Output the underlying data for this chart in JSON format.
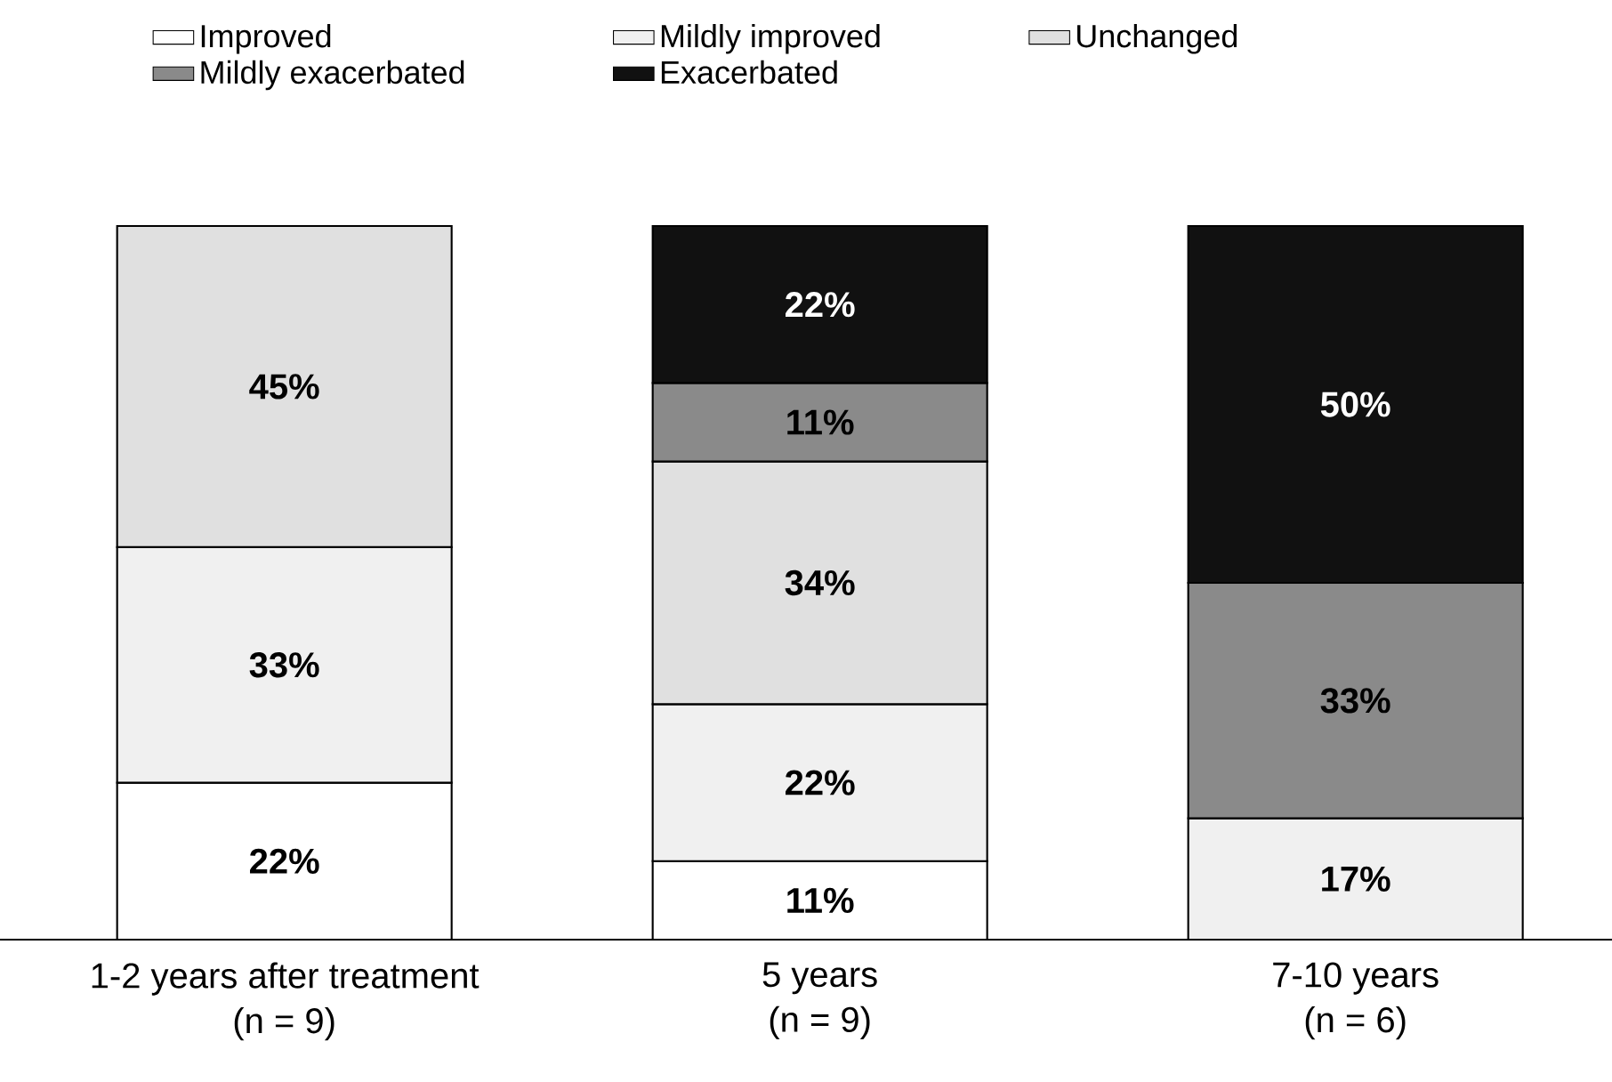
{
  "chart_data": {
    "type": "bar",
    "stacked": true,
    "categories": [
      "1-2 years after treatment (n = 9)",
      "5 years (n = 9)",
      "7-10 years (n = 6)"
    ],
    "series": [
      {
        "name": "Improved",
        "color": "#ffffff",
        "values": [
          22,
          11,
          null
        ],
        "value_labels": [
          "22%",
          "11%",
          null
        ]
      },
      {
        "name": "Mildly improved",
        "color": "#f0f0f0",
        "values": [
          33,
          22,
          17
        ],
        "value_labels": [
          "33%",
          "22%",
          "17%"
        ]
      },
      {
        "name": "Unchanged",
        "color": "#e0e0e0",
        "values": [
          45,
          34,
          null
        ],
        "value_labels": [
          "45%",
          "34%",
          null
        ]
      },
      {
        "name": "Mildly exacerbated",
        "color": "#8a8a8a",
        "values": [
          null,
          11,
          33
        ],
        "value_labels": [
          null,
          "11%",
          "33%"
        ]
      },
      {
        "name": "Exacerbated",
        "color": "#111111",
        "values": [
          null,
          22,
          50
        ],
        "value_labels": [
          null,
          "22%",
          "50%"
        ]
      }
    ],
    "ylim": [
      0,
      100
    ],
    "legend": "top",
    "tick_labels": "x"
  }
}
